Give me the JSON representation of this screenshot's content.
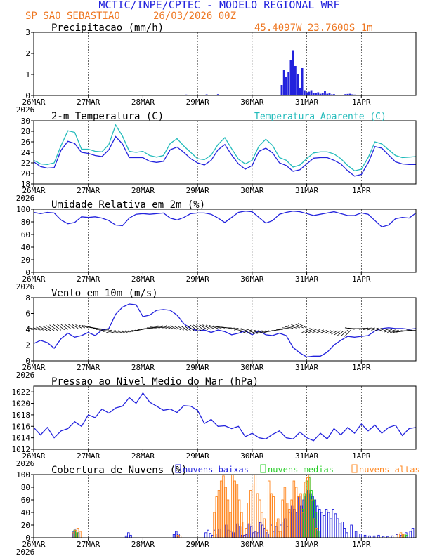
{
  "header": {
    "title": "MCTIC/INPE/CPTEC - MODELO REGIONAL WRF",
    "location": "SP SAO SEBASTIAO",
    "run": "26/03/2026 00Z",
    "coords": "45.4097W 23.7600S 1m"
  },
  "colors": {
    "blue": "#2222dd",
    "cyan": "#22bbbb",
    "orange": "#ff8822",
    "green": "#22cc22",
    "title": "#2222dd",
    "accent": "#ee7722"
  },
  "x_axis": {
    "ticks": [
      "26MAR",
      "27MAR",
      "28MAR",
      "29MAR",
      "30MAR",
      "31MAR",
      "1APR"
    ],
    "year": "2026",
    "range_hours": [
      0,
      168
    ]
  },
  "chart_data": [
    {
      "id": "precip",
      "type": "bar",
      "title": "Precipitacao (mm/h)",
      "ylim": [
        0,
        3
      ],
      "yticks": [
        "0",
        "1",
        "2",
        "3"
      ],
      "x_hours": [
        56,
        57,
        58,
        65,
        66,
        67,
        71,
        75,
        76,
        80,
        81,
        91,
        92,
        99,
        109,
        110,
        111,
        112,
        113,
        114,
        115,
        116,
        117,
        118,
        119,
        120,
        121,
        122,
        123,
        124,
        125,
        126,
        127,
        128,
        129,
        130,
        131,
        132,
        133,
        137,
        138,
        139,
        140,
        141
      ],
      "values": [
        0.02,
        0.03,
        0.02,
        0.03,
        0.02,
        0.04,
        0.02,
        0.03,
        0.05,
        0.03,
        0.06,
        0.03,
        0.02,
        0.03,
        0.5,
        1.2,
        0.9,
        1.1,
        1.7,
        2.15,
        1.4,
        1.0,
        0.35,
        1.3,
        0.25,
        0.15,
        0.18,
        0.25,
        0.1,
        0.12,
        0.15,
        0.08,
        0.1,
        0.2,
        0.08,
        0.1,
        0.05,
        0.06,
        0.03,
        0.06,
        0.07,
        0.08,
        0.05,
        0.04
      ]
    },
    {
      "id": "temperature",
      "type": "line",
      "title": "2-m Temperatura (C)",
      "legend": "Temperatura Aparente (C)",
      "ylim": [
        18,
        30
      ],
      "yticks": [
        "18",
        "20",
        "22",
        "24",
        "26",
        "28",
        "30"
      ],
      "x_hours": [
        0,
        3,
        6,
        9,
        12,
        15,
        18,
        21,
        24,
        27,
        30,
        33,
        36,
        39,
        42,
        45,
        48,
        51,
        54,
        57,
        60,
        63,
        66,
        69,
        72,
        75,
        78,
        81,
        84,
        87,
        90,
        93,
        96,
        99,
        102,
        105,
        108,
        111,
        114,
        117,
        120,
        123,
        126,
        129,
        132,
        135,
        138,
        141,
        144,
        147,
        150,
        153,
        156,
        159,
        162,
        165,
        168
      ],
      "series": [
        {
          "name": "2-m Temperatura",
          "values": [
            22.2,
            21.3,
            21.0,
            21.1,
            24.4,
            26.1,
            25.7,
            24.0,
            23.8,
            23.4,
            23.2,
            24.5,
            27.0,
            25.6,
            23.0,
            23.0,
            23.0,
            22.3,
            22.1,
            22.3,
            24.5,
            25.0,
            24.0,
            22.8,
            22.0,
            21.6,
            22.5,
            24.5,
            25.5,
            23.5,
            21.8,
            20.8,
            21.5,
            24.2,
            24.8,
            23.9,
            22.0,
            21.5,
            20.4,
            20.7,
            21.8,
            22.9,
            23.0,
            23.0,
            22.5,
            21.8,
            20.5,
            19.5,
            19.8,
            22.0,
            25.1,
            24.8,
            23.5,
            22.2,
            21.8,
            21.7,
            21.7
          ]
        },
        {
          "name": "Temperatura Aparente",
          "values": [
            22.5,
            21.8,
            21.7,
            22.0,
            25.3,
            28.1,
            27.8,
            24.6,
            24.6,
            24.2,
            24.1,
            25.5,
            29.2,
            27.1,
            24.2,
            24.0,
            24.2,
            23.4,
            23.1,
            23.4,
            25.7,
            26.6,
            25.2,
            24.0,
            22.8,
            22.6,
            23.5,
            25.5,
            26.8,
            24.7,
            22.7,
            21.8,
            22.5,
            25.2,
            26.5,
            25.3,
            23.0,
            22.5,
            21.2,
            21.6,
            22.8,
            23.9,
            24.1,
            24.1,
            23.7,
            22.8,
            21.5,
            20.5,
            20.8,
            23.0,
            26.0,
            25.6,
            24.5,
            23.4,
            23.0,
            23.1,
            23.2
          ]
        }
      ]
    },
    {
      "id": "humidity",
      "type": "line",
      "title": "Umidade Relativa em 2m (%)",
      "ylim": [
        0,
        100
      ],
      "yticks": [
        "0",
        "20",
        "40",
        "60",
        "80",
        "100"
      ],
      "x_hours": [
        0,
        3,
        6,
        9,
        12,
        15,
        18,
        21,
        24,
        27,
        30,
        33,
        36,
        39,
        42,
        45,
        48,
        51,
        54,
        57,
        60,
        63,
        66,
        69,
        72,
        75,
        78,
        81,
        84,
        87,
        90,
        93,
        96,
        99,
        102,
        105,
        108,
        111,
        114,
        117,
        120,
        123,
        126,
        129,
        132,
        135,
        138,
        141,
        144,
        147,
        150,
        153,
        156,
        159,
        162,
        165,
        168
      ],
      "series": [
        {
          "name": "Umidade Relativa",
          "values": [
            95,
            93,
            95,
            94,
            83,
            77,
            79,
            88,
            87,
            88,
            86,
            82,
            75,
            74,
            86,
            92,
            93,
            92,
            93,
            94,
            86,
            83,
            87,
            93,
            94,
            94,
            92,
            86,
            79,
            87,
            95,
            97,
            96,
            87,
            78,
            82,
            92,
            95,
            97,
            96,
            93,
            90,
            92,
            94,
            96,
            93,
            90,
            90,
            94,
            92,
            82,
            72,
            75,
            85,
            87,
            86,
            94
          ]
        }
      ]
    },
    {
      "id": "wind",
      "type": "line",
      "title": "Vento em 10m (m/s)",
      "ylim": [
        0,
        8
      ],
      "yticks": [
        "0",
        "2",
        "4",
        "6",
        "8"
      ],
      "x_hours": [
        0,
        3,
        6,
        9,
        12,
        15,
        18,
        21,
        24,
        27,
        30,
        33,
        36,
        39,
        42,
        45,
        48,
        51,
        54,
        57,
        60,
        63,
        66,
        69,
        72,
        75,
        78,
        81,
        84,
        87,
        90,
        93,
        96,
        99,
        102,
        105,
        108,
        111,
        114,
        117,
        120,
        123,
        126,
        129,
        132,
        135,
        138,
        141,
        144,
        147,
        150,
        153,
        156,
        159,
        162,
        165,
        168
      ],
      "series": [
        {
          "name": "Velocidade",
          "values": [
            2.2,
            2.6,
            2.3,
            1.6,
            2.8,
            3.5,
            3.0,
            3.2,
            3.6,
            3.2,
            3.9,
            4.1,
            5.9,
            6.8,
            7.2,
            7.1,
            5.6,
            5.8,
            6.4,
            6.5,
            6.4,
            5.8,
            4.7,
            4.1,
            3.8,
            3.9,
            3.6,
            3.9,
            3.7,
            3.3,
            3.5,
            3.8,
            3.3,
            3.8,
            3.3,
            3.2,
            3.5,
            3.2,
            1.7,
            1.0,
            0.5,
            0.6,
            0.6,
            1.1,
            2.0,
            2.6,
            3.1,
            3.0,
            3.1,
            3.2,
            3.8,
            4.1,
            4.2,
            4.1,
            4.1,
            4.0,
            4.1
          ]
        }
      ],
      "wind_barbs": "arrows along the 4 m/s line (direction)"
    },
    {
      "id": "pressure",
      "type": "line",
      "title": "Pressao ao Nivel Medio do Mar (hPa)",
      "ylim": [
        1012,
        1023
      ],
      "yticks": [
        "1012",
        "1014",
        "1016",
        "1018",
        "1020",
        "1022"
      ],
      "x_hours": [
        0,
        3,
        6,
        9,
        12,
        15,
        18,
        21,
        24,
        27,
        30,
        33,
        36,
        39,
        42,
        45,
        48,
        51,
        54,
        57,
        60,
        63,
        66,
        69,
        72,
        75,
        78,
        81,
        84,
        87,
        90,
        93,
        96,
        99,
        102,
        105,
        108,
        111,
        114,
        117,
        120,
        123,
        126,
        129,
        132,
        135,
        138,
        141,
        144,
        147,
        150,
        153,
        156,
        159,
        162,
        165,
        168
      ],
      "series": [
        {
          "name": "Pressao",
          "values": [
            1015.8,
            1014.5,
            1015.8,
            1014.0,
            1015.2,
            1015.6,
            1016.8,
            1016.0,
            1018.0,
            1017.5,
            1019.0,
            1018.3,
            1019.2,
            1019.5,
            1021.0,
            1020.0,
            1021.8,
            1020.2,
            1019.5,
            1018.8,
            1019.0,
            1018.4,
            1019.6,
            1019.5,
            1018.8,
            1016.5,
            1017.2,
            1016.0,
            1016.1,
            1015.6,
            1016.0,
            1014.2,
            1014.8,
            1014.0,
            1013.8,
            1014.6,
            1015.2,
            1014.0,
            1013.8,
            1015.0,
            1014.0,
            1013.5,
            1014.8,
            1013.8,
            1015.6,
            1014.5,
            1015.8,
            1014.8,
            1016.4,
            1015.2,
            1016.2,
            1014.8,
            1015.8,
            1016.2,
            1014.4,
            1015.6,
            1015.8
          ]
        }
      ]
    },
    {
      "id": "clouds",
      "type": "bar",
      "title": "Cobertura de Nuvens (%)",
      "legend": [
        "nuvens baixas",
        "nuvens medias",
        "nuvens altas"
      ],
      "ylim": [
        0,
        100
      ],
      "yticks": [
        "0",
        "20",
        "40",
        "60",
        "80",
        "100"
      ],
      "series": [
        {
          "name": "nuvens baixas",
          "x_hours": [
            18,
            19,
            20,
            41,
            42,
            43,
            62,
            63,
            64,
            76,
            77,
            78,
            79,
            80,
            81,
            82,
            85,
            86,
            87,
            88,
            89,
            90,
            91,
            92,
            93,
            94,
            95,
            96,
            97,
            98,
            99,
            100,
            101,
            102,
            103,
            104,
            105,
            106,
            107,
            108,
            109,
            110,
            111,
            112,
            113,
            114,
            115,
            116,
            117,
            118,
            119,
            120,
            121,
            122,
            123,
            124,
            125,
            126,
            127,
            128,
            129,
            130,
            131,
            132,
            133,
            134,
            135,
            136,
            137,
            138,
            140,
            142,
            144,
            146,
            148,
            150,
            152,
            154,
            156,
            158,
            160,
            162,
            164,
            166,
            167
          ],
          "values": [
            10,
            14,
            8,
            3,
            8,
            4,
            5,
            10,
            6,
            8,
            12,
            7,
            4,
            12,
            6,
            14,
            20,
            12,
            10,
            8,
            8,
            22,
            18,
            4,
            4,
            5,
            22,
            18,
            8,
            10,
            8,
            24,
            20,
            15,
            8,
            6,
            20,
            10,
            18,
            10,
            20,
            25,
            30,
            18,
            40,
            50,
            45,
            40,
            65,
            50,
            60,
            65,
            75,
            70,
            65,
            60,
            50,
            45,
            40,
            35,
            45,
            40,
            30,
            45,
            38,
            30,
            22,
            25,
            15,
            8,
            20,
            10,
            6,
            4,
            3,
            3,
            4,
            2,
            2,
            3,
            5,
            4,
            8,
            10,
            15
          ]
        },
        {
          "name": "nuvens medias",
          "x_hours": [
            18,
            19,
            118,
            119,
            120,
            121,
            122,
            123,
            124,
            125,
            163,
            164
          ],
          "values": [
            12,
            8,
            45,
            70,
            90,
            95,
            75,
            60,
            40,
            10,
            6,
            4
          ]
        },
        {
          "name": "nuvens altas",
          "x_hours": [
            17,
            18,
            19,
            20,
            63,
            64,
            79,
            80,
            81,
            82,
            83,
            84,
            85,
            86,
            87,
            88,
            89,
            90,
            91,
            92,
            93,
            94,
            95,
            96,
            97,
            98,
            99,
            100,
            101,
            102,
            103,
            104,
            105,
            106,
            107,
            108,
            109,
            110,
            111,
            112,
            113,
            114,
            115,
            116,
            117,
            118,
            119,
            120,
            121,
            122,
            123,
            124,
            160,
            161,
            162
          ],
          "values": [
            8,
            12,
            15,
            10,
            4,
            3,
            40,
            65,
            75,
            90,
            98,
            80,
            60,
            40,
            100,
            90,
            85,
            60,
            40,
            25,
            15,
            55,
            75,
            85,
            100,
            70,
            60,
            40,
            30,
            12,
            90,
            70,
            65,
            25,
            30,
            10,
            60,
            80,
            55,
            45,
            60,
            90,
            80,
            65,
            70,
            40,
            88,
            95,
            100,
            60,
            30,
            15,
            6,
            8,
            5
          ]
        }
      ]
    }
  ]
}
